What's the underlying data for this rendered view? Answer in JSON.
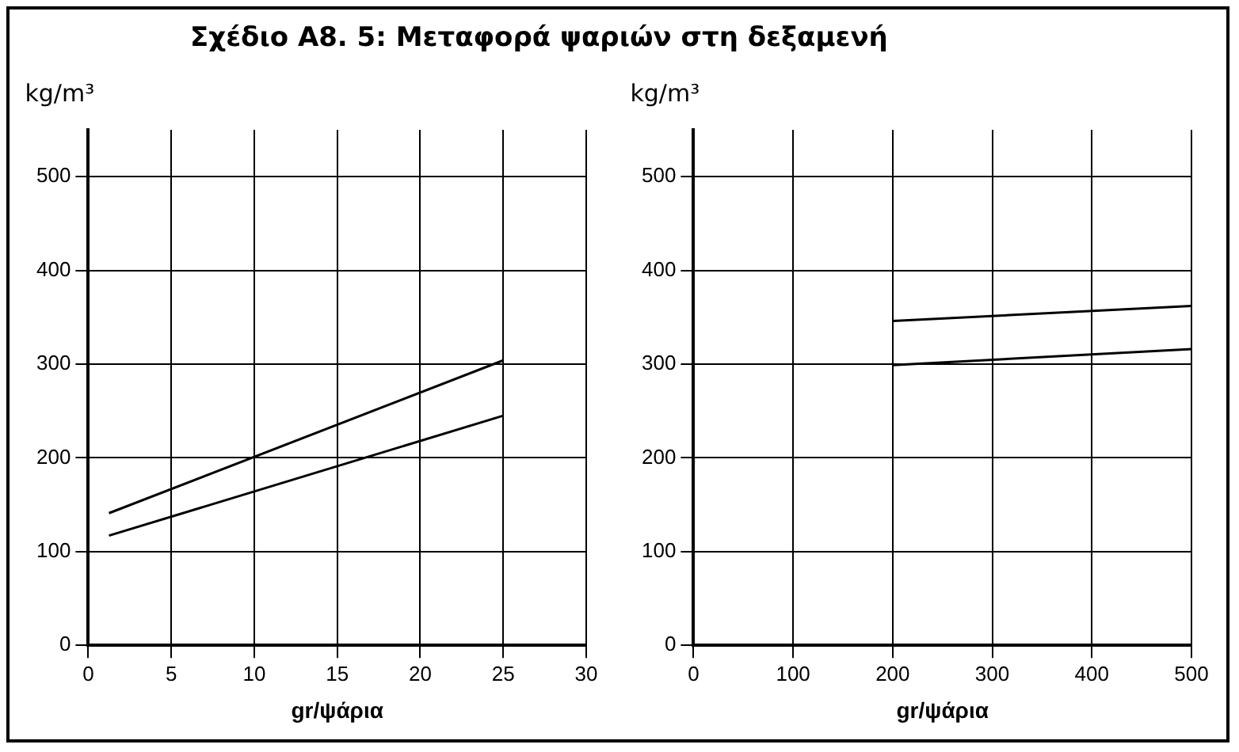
{
  "chart_data": [
    {
      "type": "line",
      "title": "Σχέδιο Α8. 5: Μεταφορά ψαριών στη δεξαμενή",
      "xlabel": "gr/ψάρια",
      "ylabel": "kg/m³",
      "series": [
        {
          "color": "#000000",
          "x": [
            1.25,
            25
          ],
          "values": [
            141,
            304
          ]
        },
        {
          "color": "#000000",
          "x": [
            1.25,
            25
          ],
          "values": [
            117,
            245
          ]
        }
      ],
      "xlim": [
        0,
        30
      ],
      "xticks": [
        0,
        5,
        10,
        15,
        20,
        25,
        30
      ],
      "ylim": [
        0,
        550
      ],
      "yticks": [
        0,
        100,
        200,
        300,
        400,
        500
      ],
      "grid": true,
      "legend": false,
      "marker": "none",
      "line_style": "solid"
    },
    {
      "type": "line",
      "xlabel": "gr/ψάρια",
      "ylabel": "kg/m³",
      "series": [
        {
          "color": "#000000",
          "x": [
            200,
            500
          ],
          "values": [
            346,
            362
          ]
        },
        {
          "color": "#000000",
          "x": [
            200,
            500
          ],
          "values": [
            299,
            316
          ]
        }
      ],
      "xlim": [
        0,
        500
      ],
      "xticks": [
        0,
        100,
        200,
        300,
        400,
        500
      ],
      "ylim": [
        0,
        550
      ],
      "yticks": [
        0,
        100,
        200,
        300,
        400,
        500
      ],
      "grid": true,
      "legend": false,
      "marker": "none",
      "line_style": "solid"
    }
  ]
}
